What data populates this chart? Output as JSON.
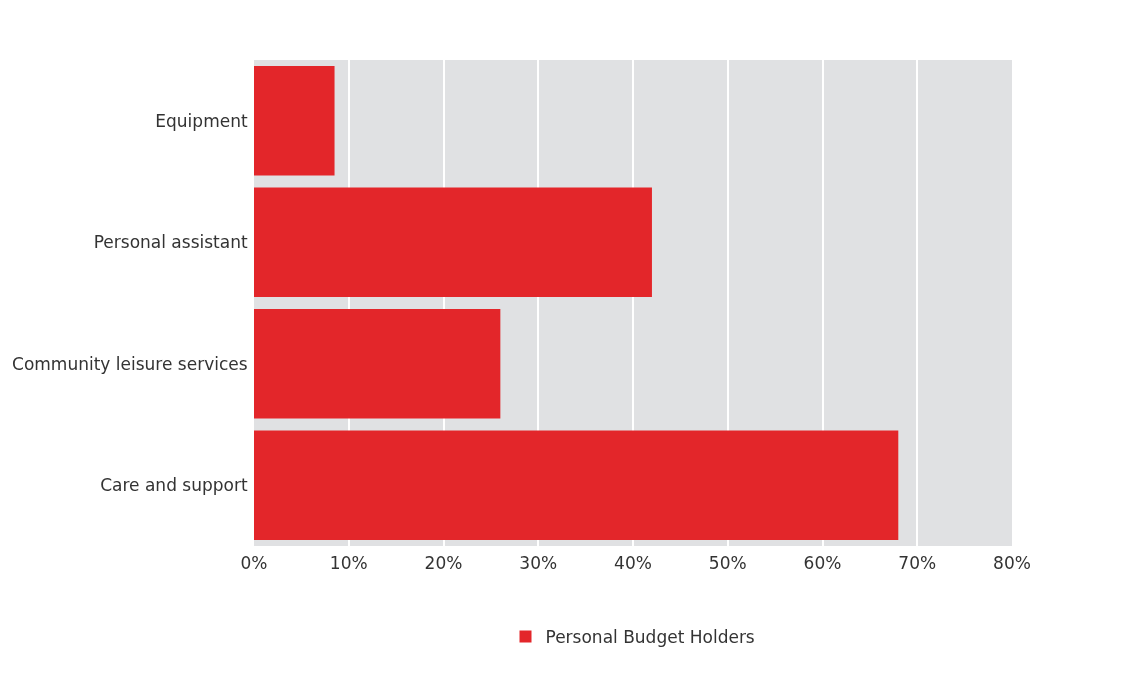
{
  "chart_data": {
    "type": "bar",
    "orientation": "horizontal",
    "categories": [
      "Equipment",
      "Personal assistant",
      "Community leisure services",
      "Care and support"
    ],
    "series": [
      {
        "name": "Personal Budget Holders",
        "color": "#e3262a",
        "values": [
          8.5,
          42,
          26,
          68
        ]
      }
    ],
    "xlim": [
      0,
      80
    ],
    "xticks": [
      {
        "value": 0,
        "label": "0%"
      },
      {
        "value": 10,
        "label": "10%"
      },
      {
        "value": 20,
        "label": "20%"
      },
      {
        "value": 30,
        "label": "30%"
      },
      {
        "value": 40,
        "label": "40%"
      },
      {
        "value": 50,
        "label": "50%"
      },
      {
        "value": 60,
        "label": "60%"
      },
      {
        "value": 70,
        "label": "70%"
      },
      {
        "value": 80,
        "label": "80%"
      }
    ],
    "grid": "x",
    "legend": "bottom"
  }
}
